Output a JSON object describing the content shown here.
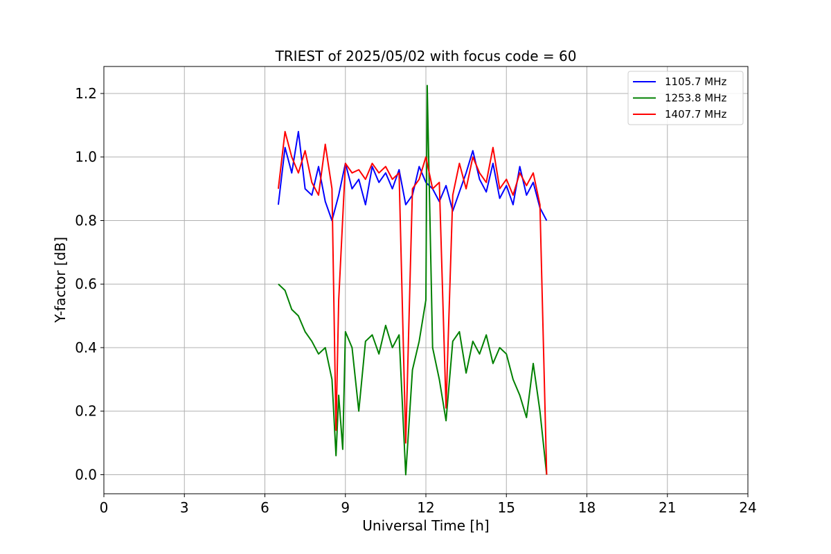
{
  "chart_data": {
    "type": "line",
    "title": "TRIEST of 2025/05/02 with focus code = 60",
    "xlabel": "Universal Time [h]",
    "ylabel": "Y-factor [dB]",
    "xlim": [
      0,
      24
    ],
    "ylim": [
      -0.06,
      1.285
    ],
    "xticks": [
      0,
      3,
      6,
      9,
      12,
      15,
      18,
      21,
      24
    ],
    "xtick_labels": [
      "0",
      "3",
      "6",
      "9",
      "12",
      "15",
      "18",
      "21",
      "24"
    ],
    "yticks": [
      0.0,
      0.2,
      0.4,
      0.6,
      0.8,
      1.0,
      1.2
    ],
    "ytick_labels": [
      "0.0",
      "0.2",
      "0.4",
      "0.6",
      "0.8",
      "1.0",
      "1.2"
    ],
    "grid": true,
    "legend_position": "top-right",
    "series": [
      {
        "name": "1105.7 MHz",
        "color": "#0000ff",
        "x": [
          6.5,
          6.75,
          7.0,
          7.25,
          7.5,
          7.75,
          8.0,
          8.25,
          8.5,
          8.75,
          9.0,
          9.25,
          9.5,
          9.75,
          10.0,
          10.25,
          10.5,
          10.75,
          11.0,
          11.25,
          11.5,
          11.75,
          12.0,
          12.25,
          12.5,
          12.75,
          13.0,
          13.25,
          13.5,
          13.75,
          14.0,
          14.25,
          14.5,
          14.75,
          15.0,
          15.25,
          15.5,
          15.75,
          16.0,
          16.25,
          16.5
        ],
        "y": [
          0.85,
          1.03,
          0.95,
          1.08,
          0.9,
          0.88,
          0.97,
          0.86,
          0.8,
          0.88,
          0.98,
          0.9,
          0.93,
          0.85,
          0.97,
          0.92,
          0.95,
          0.9,
          0.96,
          0.85,
          0.88,
          0.97,
          0.92,
          0.9,
          0.86,
          0.91,
          0.83,
          0.89,
          0.95,
          1.02,
          0.93,
          0.89,
          0.98,
          0.87,
          0.91,
          0.85,
          0.97,
          0.88,
          0.92,
          0.84,
          0.8
        ]
      },
      {
        "name": "1253.8 MHz",
        "color": "#008000",
        "x": [
          6.5,
          6.75,
          7.0,
          7.25,
          7.5,
          7.75,
          8.0,
          8.25,
          8.5,
          8.65,
          8.75,
          8.9,
          9.0,
          9.25,
          9.5,
          9.75,
          10.0,
          10.25,
          10.5,
          10.75,
          11.0,
          11.25,
          11.5,
          11.75,
          12.0,
          12.05,
          12.25,
          12.5,
          12.75,
          13.0,
          13.25,
          13.5,
          13.75,
          14.0,
          14.25,
          14.5,
          14.75,
          15.0,
          15.25,
          15.5,
          15.75,
          16.0,
          16.25,
          16.5
        ],
        "y": [
          0.6,
          0.58,
          0.52,
          0.5,
          0.45,
          0.42,
          0.38,
          0.4,
          0.3,
          0.06,
          0.25,
          0.08,
          0.45,
          0.4,
          0.2,
          0.42,
          0.44,
          0.38,
          0.47,
          0.4,
          0.44,
          0.0,
          0.33,
          0.42,
          0.55,
          1.225,
          0.4,
          0.3,
          0.17,
          0.42,
          0.45,
          0.32,
          0.42,
          0.38,
          0.44,
          0.35,
          0.4,
          0.38,
          0.3,
          0.25,
          0.18,
          0.35,
          0.2,
          0.0
        ]
      },
      {
        "name": "1407.7 MHz",
        "color": "#ff0000",
        "x": [
          6.5,
          6.75,
          7.0,
          7.25,
          7.5,
          7.75,
          8.0,
          8.25,
          8.5,
          8.65,
          8.75,
          9.0,
          9.25,
          9.5,
          9.75,
          10.0,
          10.25,
          10.5,
          10.75,
          11.0,
          11.25,
          11.5,
          11.75,
          12.0,
          12.25,
          12.5,
          12.75,
          13.0,
          13.25,
          13.5,
          13.75,
          14.0,
          14.25,
          14.5,
          14.75,
          15.0,
          15.25,
          15.5,
          15.75,
          16.0,
          16.25,
          16.5
        ],
        "y": [
          0.9,
          1.08,
          1.0,
          0.95,
          1.02,
          0.92,
          0.88,
          1.04,
          0.9,
          0.14,
          0.55,
          0.98,
          0.95,
          0.96,
          0.93,
          0.98,
          0.95,
          0.97,
          0.93,
          0.95,
          0.1,
          0.9,
          0.93,
          1.0,
          0.9,
          0.92,
          0.21,
          0.88,
          0.98,
          0.9,
          1.0,
          0.95,
          0.92,
          1.03,
          0.9,
          0.93,
          0.88,
          0.95,
          0.91,
          0.95,
          0.85,
          0.0
        ]
      }
    ]
  }
}
